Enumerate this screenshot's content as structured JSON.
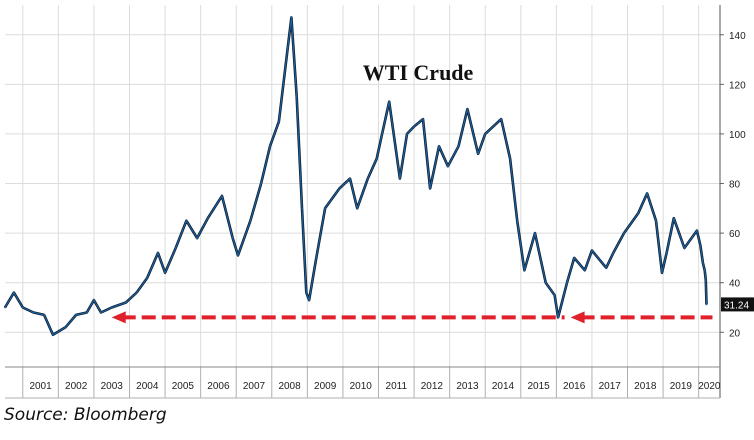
{
  "chart_data": {
    "type": "line",
    "title": "WTI Crude",
    "xlabel": "",
    "ylabel": "",
    "x_ticks": [
      "2001",
      "2002",
      "2003",
      "2004",
      "2005",
      "2006",
      "2007",
      "2008",
      "2009",
      "2010",
      "2011",
      "2012",
      "2013",
      "2014",
      "2015",
      "2016",
      "2017",
      "2018",
      "2019",
      "2020"
    ],
    "y_ticks": [
      20,
      40,
      60,
      80,
      100,
      120,
      140
    ],
    "xlim": [
      2000.5,
      2020.6
    ],
    "ylim": [
      6,
      152
    ],
    "grid": true,
    "y_axis_side": "right",
    "series": [
      {
        "name": "",
        "color": "#1a5f9e",
        "points": [
          [
            2000.5,
            30
          ],
          [
            2000.75,
            36
          ],
          [
            2001.0,
            30
          ],
          [
            2001.3,
            28
          ],
          [
            2001.6,
            27
          ],
          [
            2001.85,
            19
          ],
          [
            2002.2,
            22
          ],
          [
            2002.5,
            27
          ],
          [
            2002.8,
            28
          ],
          [
            2003.0,
            33
          ],
          [
            2003.2,
            28
          ],
          [
            2003.5,
            30
          ],
          [
            2003.9,
            32
          ],
          [
            2004.2,
            36
          ],
          [
            2004.5,
            42
          ],
          [
            2004.8,
            52
          ],
          [
            2005.0,
            44
          ],
          [
            2005.3,
            54
          ],
          [
            2005.6,
            65
          ],
          [
            2005.9,
            58
          ],
          [
            2006.2,
            66
          ],
          [
            2006.6,
            75
          ],
          [
            2006.9,
            58
          ],
          [
            2007.05,
            51
          ],
          [
            2007.4,
            65
          ],
          [
            2007.7,
            80
          ],
          [
            2007.95,
            95
          ],
          [
            2008.2,
            105
          ],
          [
            2008.45,
            135
          ],
          [
            2008.55,
            147
          ],
          [
            2008.7,
            115
          ],
          [
            2008.85,
            70
          ],
          [
            2008.97,
            36
          ],
          [
            2009.05,
            33
          ],
          [
            2009.25,
            50
          ],
          [
            2009.5,
            70
          ],
          [
            2009.9,
            78
          ],
          [
            2010.2,
            82
          ],
          [
            2010.4,
            70
          ],
          [
            2010.7,
            82
          ],
          [
            2010.95,
            90
          ],
          [
            2011.1,
            100
          ],
          [
            2011.3,
            113
          ],
          [
            2011.6,
            82
          ],
          [
            2011.8,
            100
          ],
          [
            2012.0,
            103
          ],
          [
            2012.25,
            106
          ],
          [
            2012.45,
            78
          ],
          [
            2012.7,
            95
          ],
          [
            2012.95,
            87
          ],
          [
            2013.25,
            95
          ],
          [
            2013.5,
            110
          ],
          [
            2013.8,
            92
          ],
          [
            2014.0,
            100
          ],
          [
            2014.45,
            106
          ],
          [
            2014.7,
            90
          ],
          [
            2014.9,
            65
          ],
          [
            2015.1,
            45
          ],
          [
            2015.4,
            60
          ],
          [
            2015.7,
            40
          ],
          [
            2015.95,
            35
          ],
          [
            2016.05,
            26
          ],
          [
            2016.3,
            40
          ],
          [
            2016.5,
            50
          ],
          [
            2016.8,
            45
          ],
          [
            2017.0,
            53
          ],
          [
            2017.4,
            46
          ],
          [
            2017.6,
            52
          ],
          [
            2017.9,
            60
          ],
          [
            2018.3,
            68
          ],
          [
            2018.55,
            76
          ],
          [
            2018.8,
            65
          ],
          [
            2018.97,
            44
          ],
          [
            2019.1,
            52
          ],
          [
            2019.3,
            66
          ],
          [
            2019.6,
            54
          ],
          [
            2019.95,
            61
          ],
          [
            2020.05,
            55
          ],
          [
            2020.12,
            48
          ],
          [
            2020.17,
            45
          ],
          [
            2020.2,
            41
          ],
          [
            2020.22,
            31.24
          ]
        ]
      }
    ],
    "last_value_label": "31.24",
    "annotation": {
      "type": "dashed-arrows",
      "color": "#e0202a",
      "level": 26,
      "arrow_heads_at_x": [
        2003.5,
        2016.4
      ]
    }
  },
  "source_text": "Source: Bloomberg"
}
